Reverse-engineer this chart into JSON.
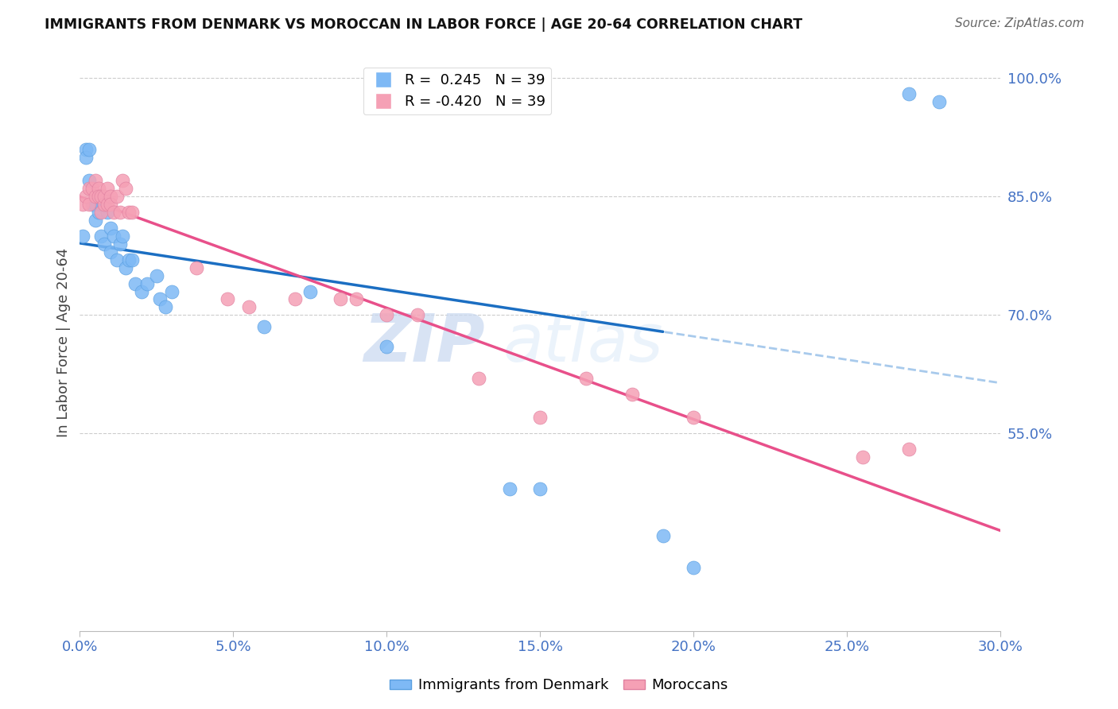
{
  "title": "IMMIGRANTS FROM DENMARK VS MOROCCAN IN LABOR FORCE | AGE 20-64 CORRELATION CHART",
  "source": "Source: ZipAtlas.com",
  "ylabel": "In Labor Force | Age 20-64",
  "xmin": 0.0,
  "xmax": 0.3,
  "ymin": 0.3,
  "ymax": 1.03,
  "right_yticks": [
    1.0,
    0.85,
    0.7,
    0.55
  ],
  "right_yticklabels": [
    "100.0%",
    "85.0%",
    "70.0%",
    "55.0%"
  ],
  "denmark_R": 0.245,
  "denmark_N": 39,
  "morocco_R": -0.42,
  "morocco_N": 39,
  "denmark_color": "#7EB9F5",
  "morocco_color": "#F5A0B5",
  "trend_denmark_color": "#1B6EC2",
  "trend_morocco_color": "#E8508A",
  "trend_dashed_color": "#A8CAEC",
  "background_color": "#FFFFFF",
  "watermark_zip": "ZIP",
  "watermark_atlas": "atlas",
  "denmark_x": [
    0.001,
    0.002,
    0.002,
    0.003,
    0.003,
    0.004,
    0.005,
    0.005,
    0.006,
    0.007,
    0.007,
    0.008,
    0.008,
    0.009,
    0.01,
    0.01,
    0.011,
    0.012,
    0.013,
    0.014,
    0.015,
    0.016,
    0.017,
    0.018,
    0.02,
    0.022,
    0.025,
    0.026,
    0.028,
    0.03,
    0.06,
    0.075,
    0.1,
    0.14,
    0.15,
    0.19,
    0.2,
    0.27,
    0.28
  ],
  "denmark_y": [
    0.8,
    0.91,
    0.9,
    0.91,
    0.87,
    0.84,
    0.84,
    0.82,
    0.83,
    0.84,
    0.8,
    0.84,
    0.79,
    0.83,
    0.81,
    0.78,
    0.8,
    0.77,
    0.79,
    0.8,
    0.76,
    0.77,
    0.77,
    0.74,
    0.73,
    0.74,
    0.75,
    0.72,
    0.71,
    0.73,
    0.685,
    0.73,
    0.66,
    0.48,
    0.48,
    0.42,
    0.38,
    0.98,
    0.97
  ],
  "morocco_x": [
    0.001,
    0.002,
    0.003,
    0.003,
    0.004,
    0.005,
    0.005,
    0.006,
    0.006,
    0.007,
    0.007,
    0.008,
    0.008,
    0.009,
    0.009,
    0.01,
    0.01,
    0.011,
    0.012,
    0.013,
    0.014,
    0.015,
    0.016,
    0.017,
    0.038,
    0.048,
    0.055,
    0.07,
    0.085,
    0.09,
    0.1,
    0.11,
    0.13,
    0.15,
    0.165,
    0.18,
    0.2,
    0.255,
    0.27
  ],
  "morocco_y": [
    0.84,
    0.85,
    0.86,
    0.84,
    0.86,
    0.87,
    0.85,
    0.86,
    0.85,
    0.83,
    0.85,
    0.84,
    0.85,
    0.86,
    0.84,
    0.85,
    0.84,
    0.83,
    0.85,
    0.83,
    0.87,
    0.86,
    0.83,
    0.83,
    0.76,
    0.72,
    0.71,
    0.72,
    0.72,
    0.72,
    0.7,
    0.7,
    0.62,
    0.57,
    0.62,
    0.6,
    0.57,
    0.52,
    0.53
  ]
}
